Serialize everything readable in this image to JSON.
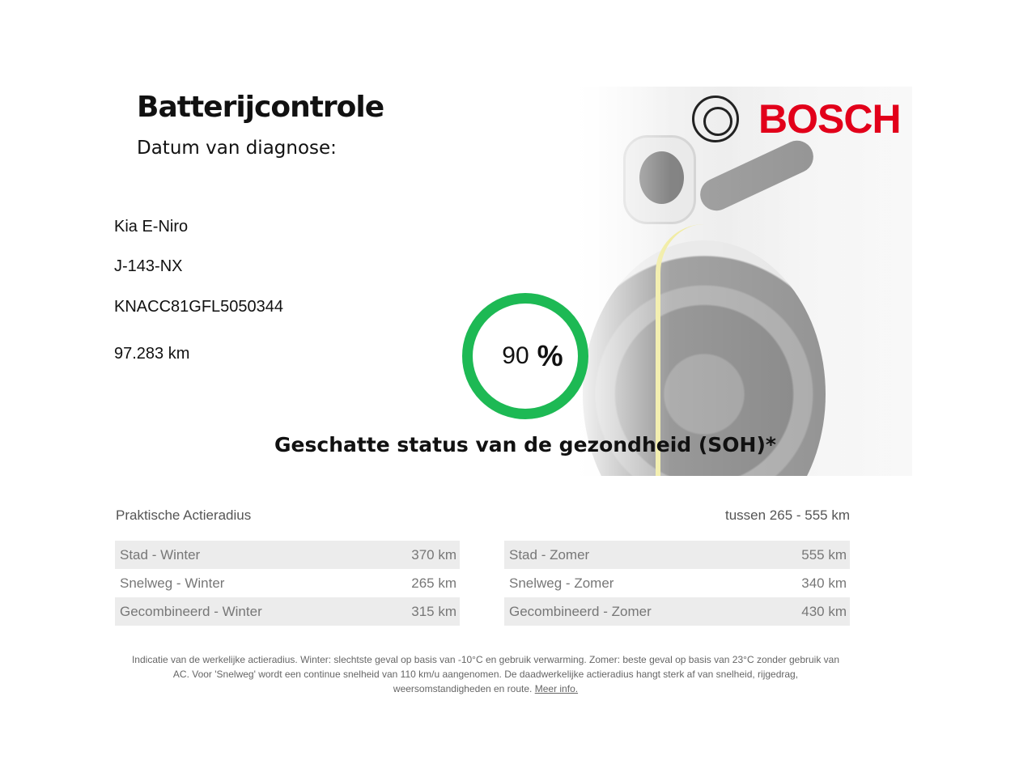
{
  "header": {
    "title": "Batterijcontrole",
    "date_label": "Datum van diagnose:",
    "brand": "BOSCH"
  },
  "vehicle": {
    "model": "Kia E-Niro",
    "plate": "J-143-NX",
    "vin": "KNACC81GFL5050344",
    "mileage": "97.283 km"
  },
  "soh": {
    "value": "90",
    "unit": "%",
    "fraction": 0.9,
    "label": "Geschatte status van de gezondheid (SOH)*",
    "color": "#1db954"
  },
  "range": {
    "title": "Praktische Actieradius",
    "summary": "tussen 265 - 555 km",
    "winter": [
      {
        "label": "Stad - Winter",
        "value": "370 km"
      },
      {
        "label": "Snelweg - Winter",
        "value": "265 km"
      },
      {
        "label": "Gecombineerd - Winter",
        "value": "315 km"
      }
    ],
    "summer": [
      {
        "label": "Stad - Zomer",
        "value": "555 km"
      },
      {
        "label": "Snelweg - Zomer",
        "value": "340 km"
      },
      {
        "label": "Gecombineerd - Zomer",
        "value": "430 km"
      }
    ]
  },
  "footnote": {
    "text": "Indicatie van de werkelijke actieradius. Winter: slechtste geval op basis van -10°C en gebruik verwarming. Zomer: beste geval op basis van 23°C zonder gebruik van AC. Voor 'Snelweg' wordt een continue snelheid van 110 km/u aangenomen. De daadwerkelijke actieradius hangt sterk af van snelheid, rijgedrag, weersomstandigheden en route.",
    "link": "Meer info."
  }
}
